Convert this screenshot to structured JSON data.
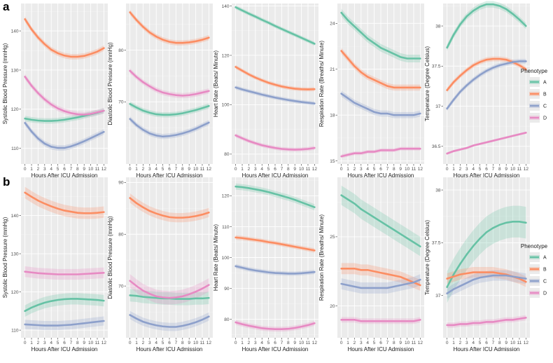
{
  "row_labels": [
    "a",
    "b"
  ],
  "legend": {
    "title": "Phenotype",
    "entries": [
      {
        "name": "A",
        "color": "#66c2a5"
      },
      {
        "name": "B",
        "color": "#fc8d62"
      },
      {
        "name": "C",
        "color": "#8da0cb"
      },
      {
        "name": "D",
        "color": "#e78ac3"
      }
    ]
  },
  "chart_data": [
    {
      "type": "line",
      "row": "a",
      "ylabel": "Systolic Blood Pressure (mmHg)",
      "xlabel": "Hours After ICU Admission",
      "x": [
        0,
        1,
        2,
        3,
        4,
        5,
        6,
        7,
        8,
        9,
        10,
        11,
        12
      ],
      "ylim": [
        106,
        147
      ],
      "yticks": [
        110,
        120,
        130,
        140
      ],
      "series": [
        {
          "name": "A",
          "values": [
            117.6,
            117.3,
            117.1,
            117.0,
            117.0,
            117.1,
            117.3,
            117.6,
            117.9,
            118.3,
            118.7,
            119.1,
            119.6
          ],
          "band": 0.7
        },
        {
          "name": "B",
          "values": [
            143.0,
            140.4,
            138.3,
            136.6,
            135.2,
            134.3,
            133.7,
            133.4,
            133.4,
            133.6,
            134.1,
            134.7,
            135.6
          ],
          "band": 0.7
        },
        {
          "name": "C",
          "values": [
            116.5,
            114.3,
            112.5,
            111.2,
            110.4,
            110.1,
            110.1,
            110.5,
            111.1,
            111.8,
            112.6,
            113.4,
            114.2
          ],
          "band": 0.7
        },
        {
          "name": "D",
          "values": [
            128.3,
            126.0,
            124.1,
            122.5,
            121.2,
            120.2,
            119.5,
            119.0,
            118.7,
            118.6,
            118.8,
            119.2,
            119.6
          ],
          "band": 0.7
        }
      ]
    },
    {
      "type": "line",
      "row": "a",
      "ylabel": "Diastolic Blood Pressure (mmHg)",
      "xlabel": "Hours After ICU Admission",
      "x": [
        0,
        1,
        2,
        3,
        4,
        5,
        6,
        7,
        8,
        9,
        10,
        11,
        12
      ],
      "ylim": [
        58,
        89
      ],
      "yticks": [
        70,
        80
      ],
      "series": [
        {
          "name": "A",
          "values": [
            69.6,
            68.9,
            68.3,
            67.9,
            67.6,
            67.5,
            67.5,
            67.6,
            67.8,
            68.1,
            68.4,
            68.8,
            69.2
          ],
          "band": 0.5
        },
        {
          "name": "B",
          "values": [
            87.3,
            85.8,
            84.5,
            83.4,
            82.6,
            82.0,
            81.6,
            81.4,
            81.4,
            81.5,
            81.7,
            82.0,
            82.4
          ],
          "band": 0.5
        },
        {
          "name": "C",
          "values": [
            66.7,
            65.5,
            64.6,
            63.9,
            63.5,
            63.3,
            63.4,
            63.6,
            63.9,
            64.3,
            64.8,
            65.4,
            66.0
          ],
          "band": 0.5
        },
        {
          "name": "D",
          "values": [
            76.0,
            74.8,
            73.8,
            73.0,
            72.3,
            71.8,
            71.5,
            71.3,
            71.2,
            71.3,
            71.5,
            71.8,
            72.1
          ],
          "band": 0.5
        }
      ]
    },
    {
      "type": "line",
      "row": "a",
      "ylabel": "Heart Rate (Beats/ Minute)",
      "xlabel": "Hours After ICU Admission",
      "x": [
        0,
        1,
        2,
        3,
        4,
        5,
        6,
        7,
        8,
        9,
        10,
        11,
        12
      ],
      "ylim": [
        76,
        141
      ],
      "yticks": [
        80,
        100,
        120,
        140
      ],
      "series": [
        {
          "name": "A",
          "values": [
            139.5,
            138.2,
            136.9,
            135.7,
            134.4,
            133.2,
            131.9,
            130.7,
            129.5,
            128.3,
            127.1,
            125.9,
            124.7
          ],
          "band": 0.8
        },
        {
          "name": "B",
          "values": [
            115.3,
            113.8,
            112.3,
            111.0,
            109.9,
            108.9,
            108.1,
            107.4,
            106.9,
            106.5,
            106.3,
            106.2,
            106.3
          ],
          "band": 0.8
        },
        {
          "name": "C",
          "values": [
            107.0,
            106.2,
            105.5,
            104.8,
            104.1,
            103.5,
            102.9,
            102.4,
            101.9,
            101.5,
            101.1,
            100.8,
            100.5
          ],
          "band": 0.8
        },
        {
          "name": "D",
          "values": [
            87.6,
            86.4,
            85.3,
            84.4,
            83.6,
            83.0,
            82.5,
            82.1,
            81.9,
            81.8,
            81.9,
            82.1,
            82.5
          ],
          "band": 0.8
        }
      ]
    },
    {
      "type": "line",
      "row": "a",
      "ylabel": "Respiration Rate (Breaths/ Minute)",
      "xlabel": "Hours After ICU Admission",
      "x": [
        0,
        1,
        2,
        3,
        4,
        5,
        6,
        7,
        8,
        9,
        10,
        11,
        12
      ],
      "ylim": [
        14.8,
        25.3
      ],
      "yticks": [
        15,
        18,
        21,
        24
      ],
      "series": [
        {
          "name": "A",
          "values": [
            24.7,
            24.2,
            23.8,
            23.4,
            23.0,
            22.7,
            22.4,
            22.2,
            22.0,
            21.8,
            21.7,
            21.7,
            21.7
          ],
          "band": 0.25
        },
        {
          "name": "B",
          "values": [
            22.2,
            21.7,
            21.2,
            20.8,
            20.5,
            20.3,
            20.1,
            19.9,
            19.8,
            19.8,
            19.8,
            19.8,
            19.8
          ],
          "band": 0.2
        },
        {
          "name": "C",
          "values": [
            19.4,
            19.1,
            18.8,
            18.6,
            18.4,
            18.2,
            18.1,
            18.1,
            18.0,
            18.0,
            18.0,
            18.0,
            18.1
          ],
          "band": 0.2
        },
        {
          "name": "D",
          "values": [
            15.3,
            15.4,
            15.5,
            15.5,
            15.6,
            15.6,
            15.7,
            15.7,
            15.7,
            15.8,
            15.8,
            15.8,
            15.8
          ],
          "band": 0.12
        }
      ]
    },
    {
      "type": "line",
      "row": "a",
      "ylabel": "Temperature (Degree Celsius)",
      "xlabel": "Hours After ICU Admission",
      "x": [
        0,
        1,
        2,
        3,
        4,
        5,
        6,
        7,
        8,
        9,
        10,
        11,
        12
      ],
      "ylim": [
        36.28,
        38.28
      ],
      "yticks": [
        36.5,
        37.0,
        37.5,
        38.0
      ],
      "series": [
        {
          "name": "A",
          "values": [
            37.73,
            37.89,
            38.02,
            38.12,
            38.19,
            38.24,
            38.27,
            38.27,
            38.25,
            38.21,
            38.15,
            38.08,
            38.0
          ],
          "band": 0.04
        },
        {
          "name": "B",
          "values": [
            37.2,
            37.3,
            37.38,
            37.45,
            37.51,
            37.55,
            37.58,
            37.59,
            37.59,
            37.58,
            37.55,
            37.51,
            37.46
          ],
          "band": 0.03
        },
        {
          "name": "C",
          "values": [
            36.97,
            37.08,
            37.18,
            37.26,
            37.33,
            37.39,
            37.44,
            37.48,
            37.51,
            37.53,
            37.55,
            37.56,
            37.56
          ],
          "band": 0.03
        },
        {
          "name": "D",
          "values": [
            36.41,
            36.44,
            36.46,
            36.48,
            36.51,
            36.53,
            36.55,
            36.57,
            36.59,
            36.61,
            36.63,
            36.65,
            36.67
          ],
          "band": 0.015
        }
      ]
    },
    {
      "type": "line",
      "row": "b",
      "ylabel": "Systolic Blood Pressure (mmHg)",
      "xlabel": "Hours After ICU Admission",
      "x": [
        0,
        1,
        2,
        3,
        4,
        5,
        6,
        7,
        8,
        9,
        10,
        11,
        12
      ],
      "ylim": [
        108,
        150
      ],
      "yticks": [
        110,
        120,
        130,
        140
      ],
      "series": [
        {
          "name": "A",
          "values": [
            115.0,
            115.9,
            116.6,
            117.2,
            117.6,
            117.9,
            118.1,
            118.2,
            118.2,
            118.1,
            118.0,
            117.9,
            117.7
          ],
          "band": 1.5
        },
        {
          "name": "B",
          "values": [
            146.0,
            144.9,
            143.9,
            143.1,
            142.4,
            141.8,
            141.3,
            141.0,
            140.7,
            140.6,
            140.6,
            140.7,
            140.9
          ],
          "band": 1.5
        },
        {
          "name": "C",
          "values": [
            111.5,
            111.4,
            111.3,
            111.2,
            111.2,
            111.2,
            111.3,
            111.4,
            111.6,
            111.8,
            112.0,
            112.2,
            112.4
          ],
          "band": 1.2
        },
        {
          "name": "D",
          "values": [
            125.3,
            125.1,
            124.9,
            124.8,
            124.7,
            124.6,
            124.6,
            124.6,
            124.6,
            124.7,
            124.8,
            124.9,
            125.0
          ],
          "band": 1.4
        }
      ]
    },
    {
      "type": "line",
      "row": "b",
      "ylabel": "Diastolic Blood Pressure (mmHg)",
      "xlabel": "Hours After ICU Admission",
      "x": [
        0,
        1,
        2,
        3,
        4,
        5,
        6,
        7,
        8,
        9,
        10,
        11,
        12
      ],
      "ylim": [
        60,
        91
      ],
      "yticks": [
        70,
        80,
        90
      ],
      "series": [
        {
          "name": "A",
          "values": [
            68.2,
            68.1,
            67.9,
            67.8,
            67.7,
            67.6,
            67.6,
            67.5,
            67.5,
            67.5,
            67.6,
            67.6,
            67.7
          ],
          "band": 1.2
        },
        {
          "name": "B",
          "values": [
            87.0,
            86.0,
            85.2,
            84.5,
            84.0,
            83.6,
            83.3,
            83.2,
            83.2,
            83.3,
            83.5,
            83.8,
            84.2
          ],
          "band": 0.9
        },
        {
          "name": "C",
          "values": [
            64.4,
            63.7,
            63.1,
            62.7,
            62.4,
            62.2,
            62.1,
            62.1,
            62.3,
            62.6,
            63.0,
            63.5,
            64.1
          ],
          "band": 0.8
        },
        {
          "name": "D",
          "values": [
            71.0,
            70.0,
            69.1,
            68.5,
            68.0,
            67.8,
            67.7,
            67.8,
            68.0,
            68.4,
            68.9,
            69.5,
            70.2
          ],
          "band": 1.3
        }
      ]
    },
    {
      "type": "line",
      "row": "b",
      "ylabel": "Heart Rate (Beats/ Minute)",
      "xlabel": "Hours After ICU Admission",
      "x": [
        0,
        1,
        2,
        3,
        4,
        5,
        6,
        7,
        8,
        9,
        10,
        11,
        12
      ],
      "ylim": [
        74,
        126
      ],
      "yticks": [
        80,
        90,
        100,
        110,
        120
      ],
      "series": [
        {
          "name": "A",
          "values": [
            123.0,
            122.8,
            122.5,
            122.1,
            121.7,
            121.2,
            120.6,
            120.0,
            119.4,
            118.7,
            117.9,
            117.1,
            116.3
          ],
          "band": 1.0
        },
        {
          "name": "B",
          "values": [
            106.5,
            106.3,
            106.0,
            105.7,
            105.4,
            105.0,
            104.7,
            104.3,
            103.9,
            103.5,
            103.1,
            102.7,
            102.3
          ],
          "band": 0.7
        },
        {
          "name": "C",
          "values": [
            97.2,
            96.7,
            96.2,
            95.8,
            95.5,
            95.2,
            95.0,
            94.9,
            94.8,
            94.8,
            94.9,
            95.1,
            95.3
          ],
          "band": 0.7
        },
        {
          "name": "D",
          "values": [
            79.0,
            78.4,
            77.9,
            77.5,
            77.1,
            76.9,
            76.8,
            76.8,
            76.9,
            77.2,
            77.6,
            78.1,
            78.7
          ],
          "band": 0.8
        }
      ]
    },
    {
      "type": "line",
      "row": "b",
      "ylabel": "Respiration Rate (Breaths/ Minute)",
      "xlabel": "Hours After ICU Admission",
      "x": [
        0,
        1,
        2,
        3,
        4,
        5,
        6,
        7,
        8,
        9,
        10,
        11,
        12
      ],
      "ylim": [
        17.7,
        29.3
      ],
      "yticks": [
        20,
        25
      ],
      "series": [
        {
          "name": "A",
          "values": [
            28.0,
            27.7,
            27.4,
            27.0,
            26.7,
            26.4,
            26.1,
            25.8,
            25.5,
            25.2,
            24.9,
            24.6,
            24.3
          ],
          "band": 0.7
        },
        {
          "name": "B",
          "values": [
            22.7,
            22.7,
            22.7,
            22.6,
            22.6,
            22.5,
            22.4,
            22.3,
            22.2,
            22.1,
            21.9,
            21.7,
            21.5
          ],
          "band": 0.4
        },
        {
          "name": "C",
          "values": [
            21.6,
            21.5,
            21.4,
            21.3,
            21.3,
            21.3,
            21.3,
            21.3,
            21.4,
            21.5,
            21.6,
            21.7,
            21.9
          ],
          "band": 0.4
        },
        {
          "name": "D",
          "values": [
            19.0,
            19.0,
            19.0,
            18.9,
            18.9,
            18.9,
            18.9,
            18.9,
            18.9,
            18.9,
            18.9,
            18.9,
            19.0
          ],
          "band": 0.2
        }
      ]
    },
    {
      "type": "line",
      "row": "b",
      "ylabel": "Temperature (Degree Celsius)",
      "xlabel": "Hours After ICU Admission",
      "x": [
        0,
        1,
        2,
        3,
        4,
        5,
        6,
        7,
        8,
        9,
        10,
        11,
        12
      ],
      "ylim": [
        36.6,
        38.12
      ],
      "yticks": [
        37.0,
        37.5,
        38.0
      ],
      "series": [
        {
          "name": "A",
          "values": [
            37.08,
            37.2,
            37.3,
            37.39,
            37.47,
            37.54,
            37.6,
            37.64,
            37.67,
            37.69,
            37.7,
            37.7,
            37.69
          ],
          "band": 0.15
        },
        {
          "name": "B",
          "values": [
            37.16,
            37.18,
            37.2,
            37.21,
            37.22,
            37.22,
            37.22,
            37.22,
            37.21,
            37.2,
            37.18,
            37.16,
            37.13
          ],
          "band": 0.05
        },
        {
          "name": "C",
          "values": [
            37.02,
            37.06,
            37.09,
            37.12,
            37.15,
            37.17,
            37.18,
            37.19,
            37.19,
            37.19,
            37.18,
            37.17,
            37.16
          ],
          "band": 0.05
        },
        {
          "name": "D",
          "values": [
            36.72,
            36.72,
            36.73,
            36.73,
            36.74,
            36.74,
            36.75,
            36.75,
            36.76,
            36.77,
            36.77,
            36.78,
            36.79
          ],
          "band": 0.025
        }
      ]
    }
  ]
}
